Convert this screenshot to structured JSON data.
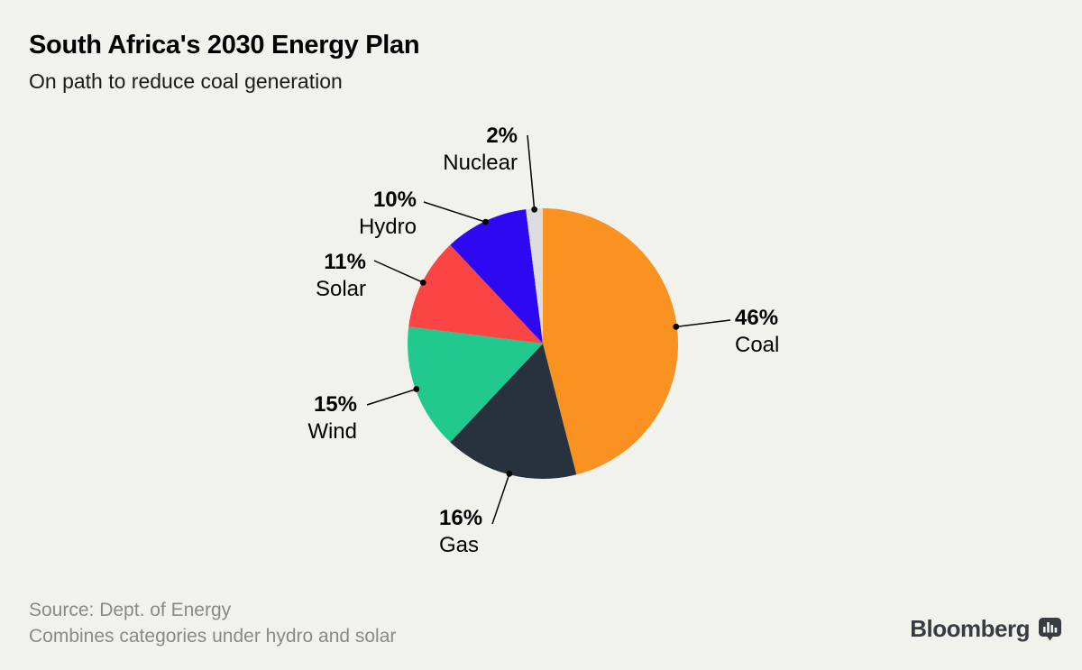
{
  "header": {
    "title": "South Africa's 2030 Energy Plan",
    "subtitle": "On path to reduce coal generation"
  },
  "chart_data": {
    "type": "pie",
    "title": "South Africa's 2030 Energy Plan",
    "subtitle": "On path to reduce coal generation",
    "unit": "%",
    "start_angle_deg": 0,
    "direction": "clockwise",
    "legend_position": "outside-labels-with-leader-lines",
    "slices": [
      {
        "label": "Coal",
        "value": 46,
        "pct_label": "46%",
        "color": "#F99220"
      },
      {
        "label": "Gas",
        "value": 16,
        "pct_label": "16%",
        "color": "#27323E"
      },
      {
        "label": "Wind",
        "value": 15,
        "pct_label": "15%",
        "color": "#21C98F"
      },
      {
        "label": "Solar",
        "value": 11,
        "pct_label": "11%",
        "color": "#FB4545"
      },
      {
        "label": "Hydro",
        "value": 10,
        "pct_label": "10%",
        "color": "#2E08F0"
      },
      {
        "label": "Nuclear",
        "value": 2,
        "pct_label": "2%",
        "color": "#DCDCDC"
      }
    ]
  },
  "footer": {
    "source": "Source: Dept. of Energy",
    "note": "Combines categories under hydro and solar",
    "brand": "Bloomberg"
  },
  "colors": {
    "background": "#F2F2ED",
    "text": "#000000",
    "footer_text": "#8A8A85",
    "leader_line": "#000000",
    "brand_color": "#383C42"
  }
}
